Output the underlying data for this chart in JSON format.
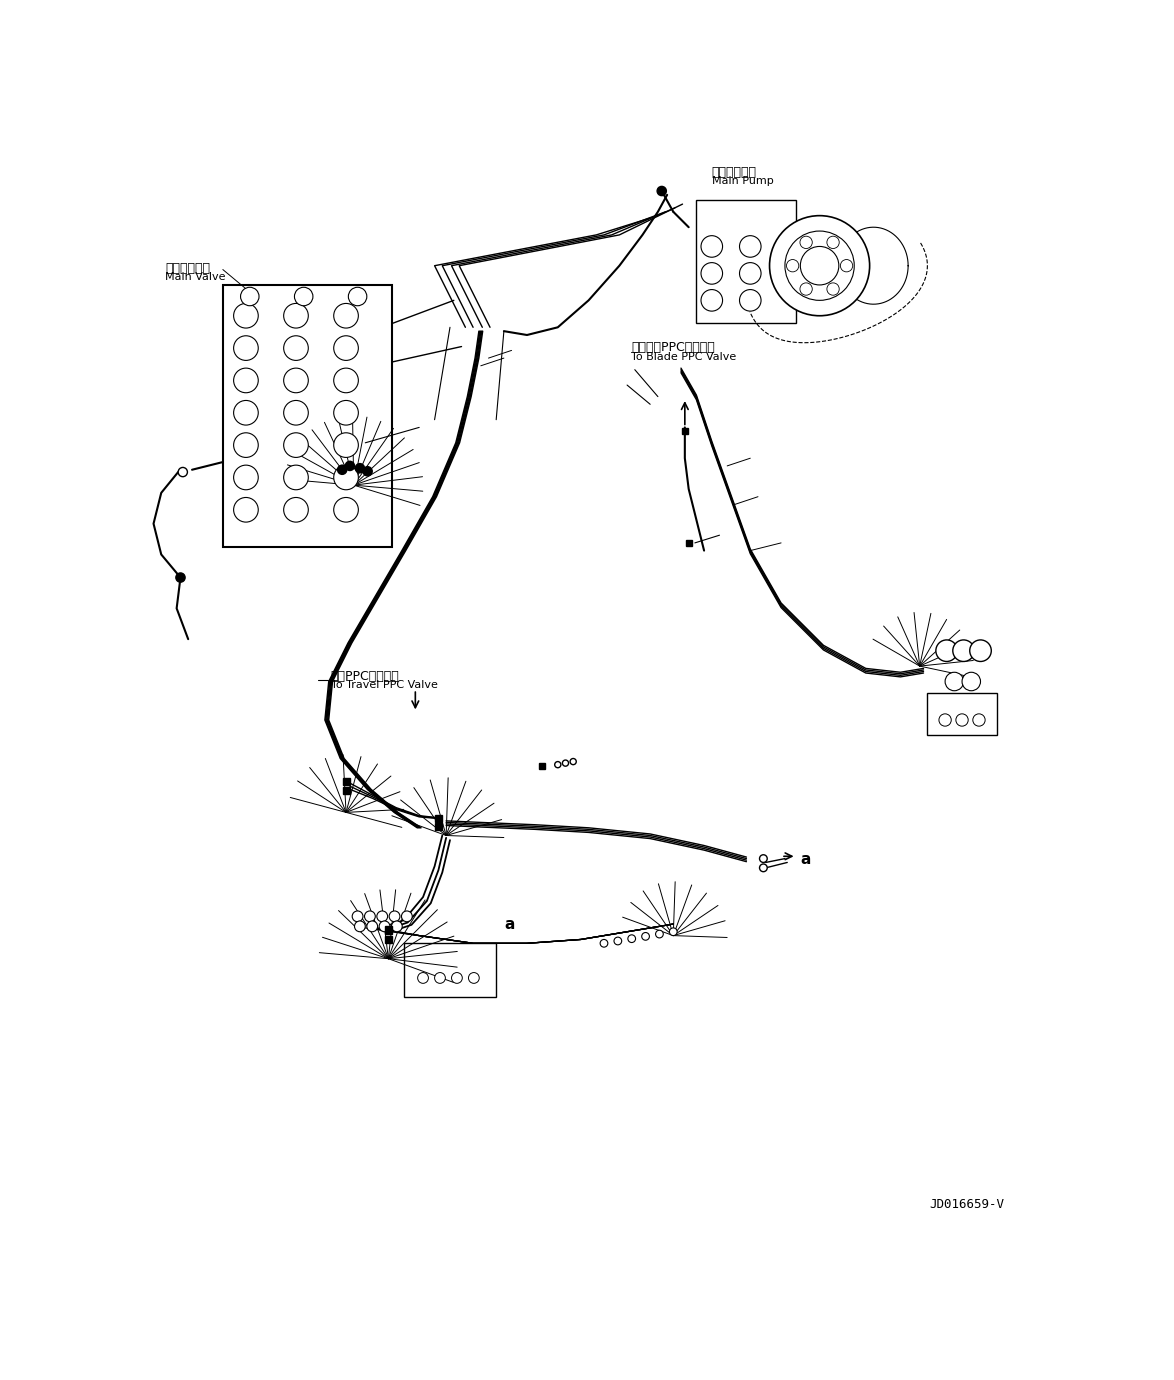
{
  "background_color": "#ffffff",
  "line_color": "#000000",
  "fig_width": 11.74,
  "fig_height": 13.8,
  "dpi": 100,
  "labels": {
    "main_pump_jp": "メインポンプ",
    "main_pump_en": "Main Pump",
    "main_valve_jp": "メインバルブ",
    "main_valve_en": "Main Valve",
    "blade_ppc_jp": "ブレードPPCバルブへ",
    "blade_ppc_en": "To Blade PPC Valve",
    "travel_ppc_jp": "走行PPCバルブへ",
    "travel_ppc_en": "To Travel PPC Valve",
    "drawing_no": "JD016659-V",
    "label_a": "a"
  }
}
